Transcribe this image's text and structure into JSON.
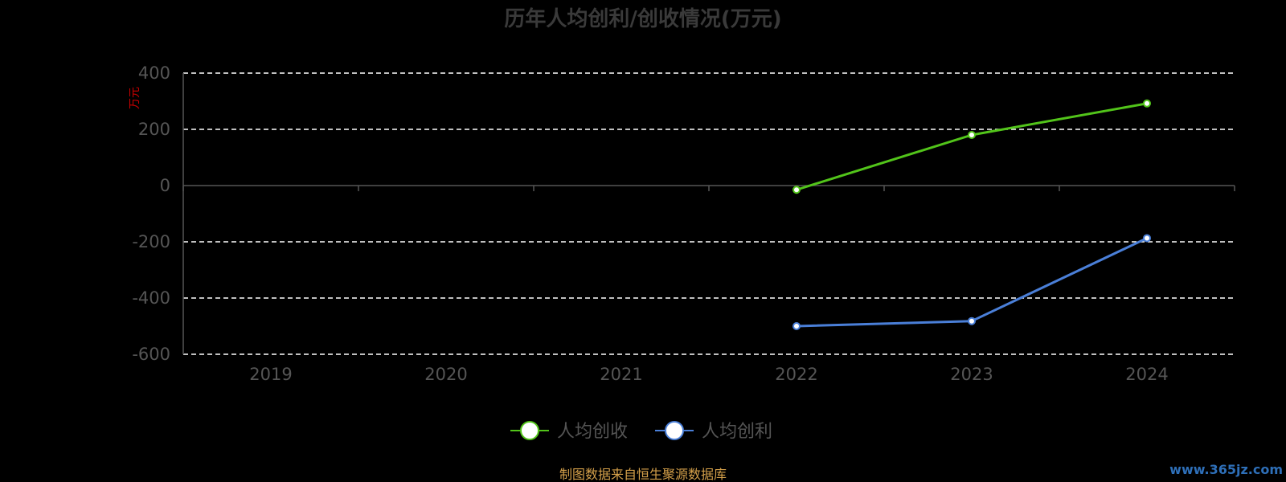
{
  "chart_data": {
    "type": "line",
    "title": "历年人均创利/创收情况(万元)",
    "ylabel": "万元",
    "categories": [
      "2019",
      "2020",
      "2021",
      "2022",
      "2023",
      "2024"
    ],
    "ylim": [
      -600,
      400
    ],
    "yticks": [
      400,
      200,
      0,
      -200,
      -400,
      -600
    ],
    "grid": true,
    "legend_position": "bottom-center",
    "series": [
      {
        "name": "人均创收",
        "color": "#52c41a",
        "values": [
          null,
          null,
          null,
          -15,
          180,
          292
        ]
      },
      {
        "name": "人均创利",
        "color": "#4a7fd8",
        "values": [
          null,
          null,
          null,
          -500,
          -482,
          -187
        ]
      }
    ]
  },
  "footer": {
    "source": "制图数据来自恒生聚源数据库",
    "watermark": "www.365jz.com"
  }
}
